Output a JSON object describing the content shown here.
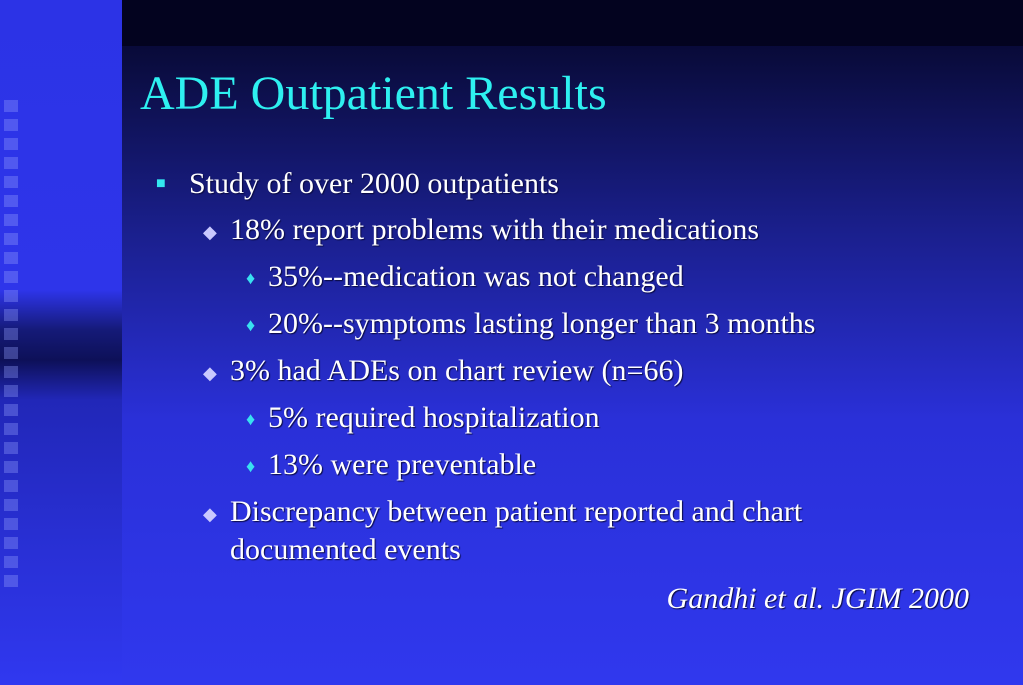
{
  "slide": {
    "title": "ADE Outpatient Results",
    "bullets": [
      {
        "level": 1,
        "text": "Study of over 2000 outpatients"
      },
      {
        "level": 2,
        "text": "18% report problems with their medications"
      },
      {
        "level": 3,
        "text": "35%--medication was not changed"
      },
      {
        "level": 3,
        "text": "20%--symptoms lasting longer than 3 months"
      },
      {
        "level": 2,
        "text": "3% had ADEs on chart review (n=66)"
      },
      {
        "level": 3,
        "text": "5% required hospitalization"
      },
      {
        "level": 3,
        "text": "13% were preventable"
      },
      {
        "level": 2,
        "text": "Discrepancy between patient reported and chart"
      },
      {
        "level": 2,
        "text": "documented events"
      }
    ],
    "citation": "Gandhi et al. JGIM 2000",
    "bullet_icons": {
      "level1": "square-bullet-icon",
      "level2": "diamond-bullet-icon",
      "level3": "small-diamond-bullet-icon"
    },
    "colors": {
      "title": "#2ef0f0",
      "text": "#ffffff",
      "background": "#2f34f0"
    }
  }
}
